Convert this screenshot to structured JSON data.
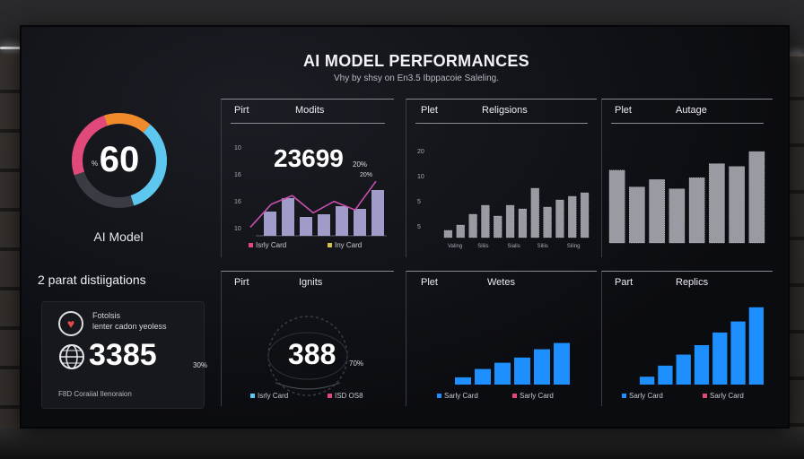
{
  "dashboard": {
    "title": "AI MODEL PERFORMANCES",
    "subtitle": "Vhy by shsy on En3.5 Ibppacoie Saleling."
  },
  "gauge": {
    "value": "60",
    "percent_symbol": "%",
    "label": "AI Model",
    "level_percent": 60,
    "colors": [
      "#e0497a",
      "#f08a2a",
      "#5ec7f0",
      "#9aa0ac"
    ]
  },
  "section": {
    "title": "2 parat distiigations"
  },
  "feature_card": {
    "line1": "Fotolsis",
    "line2": "lenter cadon yeoless",
    "value": "3385",
    "percent": "30%",
    "footer": "F8D Coraiial Ilenoraion",
    "icons": [
      "heart-icon",
      "globe-icon"
    ]
  },
  "panels": {
    "models": {
      "h1": "Pirt",
      "h2": "Modits",
      "value": "23699",
      "percent": "20%",
      "y_ticks": [
        "10",
        "16",
        "16",
        "10"
      ],
      "legend": [
        {
          "label": "Isrly Card",
          "color": "#e0497a"
        },
        {
          "label": "Iny Card",
          "color": "#d7c04a"
        }
      ],
      "bar_tag": "20%",
      "bars": [
        0.45,
        0.7,
        0.35,
        0.4,
        0.55,
        0.5,
        0.85
      ],
      "line": [
        0.15,
        0.55,
        0.7,
        0.4,
        0.6,
        0.45,
        0.95
      ],
      "bar_color": "#b8b4e8",
      "line_color": "#c84fb0"
    },
    "religions": {
      "h1": "Plet",
      "h2": "Religsions",
      "y_ticks": [
        "20",
        "10",
        "5",
        "5"
      ],
      "x_ticks": [
        "Valing",
        "Siliis",
        "Sialis",
        "Siliis",
        "Siling"
      ],
      "bars": [
        0.08,
        0.14,
        0.26,
        0.36,
        0.24,
        0.36,
        0.32,
        0.55,
        0.34,
        0.42,
        0.46,
        0.5
      ]
    },
    "autage": {
      "h1": "Plet",
      "h2": "Autage",
      "bars": [
        0.78,
        0.6,
        0.68,
        0.58,
        0.7,
        0.85,
        0.82,
        0.98
      ]
    },
    "ignits": {
      "h1": "Pirt",
      "h2": "Ignits",
      "value": "388",
      "percent": "70%",
      "legend": [
        {
          "label": "Isrly Card",
          "color": "#5ec7f0"
        },
        {
          "label": "ISD OS8",
          "color": "#e0497a"
        }
      ]
    },
    "wetes": {
      "h1": "Plet",
      "h2": "Wetes",
      "bars": [
        0.14,
        0.3,
        0.42,
        0.52,
        0.68,
        0.8
      ],
      "color": "#1e8fff",
      "legend": [
        {
          "label": "Sarly Card",
          "color": "#1e8fff"
        },
        {
          "label": "Sarly Card",
          "color": "#e0497a"
        }
      ]
    },
    "replics": {
      "h1": "Part",
      "h2": "Replics",
      "bars": [
        0.1,
        0.24,
        0.38,
        0.5,
        0.66,
        0.8,
        0.98
      ],
      "color": "#1e8fff",
      "legend": [
        {
          "label": "Sarly Card",
          "color": "#1e8fff"
        },
        {
          "label": "Sarly Card",
          "color": "#e0497a"
        }
      ]
    }
  }
}
